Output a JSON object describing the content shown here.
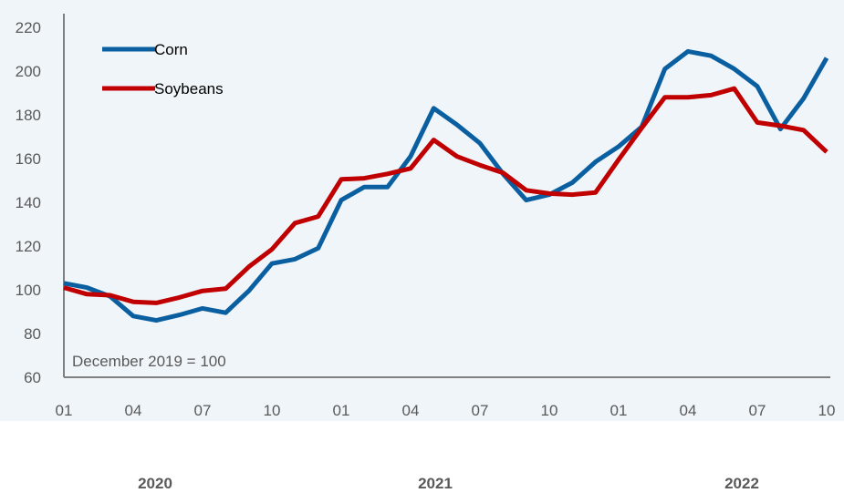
{
  "chart_data": {
    "type": "line",
    "title": "",
    "xlabel": "",
    "ylabel": "",
    "annotation": "December 2019 = 100",
    "ylim": [
      60,
      220
    ],
    "yticks": [
      60,
      80,
      100,
      120,
      140,
      160,
      180,
      200,
      220
    ],
    "x_tick_labels": [
      "01",
      "04",
      "07",
      "10",
      "01",
      "04",
      "07",
      "10",
      "01",
      "04",
      "07",
      "10"
    ],
    "year_labels": [
      "2020",
      "2021",
      "2022"
    ],
    "x": [
      "2020-01",
      "2020-02",
      "2020-03",
      "2020-04",
      "2020-05",
      "2020-06",
      "2020-07",
      "2020-08",
      "2020-09",
      "2020-10",
      "2020-11",
      "2020-12",
      "2021-01",
      "2021-02",
      "2021-03",
      "2021-04",
      "2021-05",
      "2021-06",
      "2021-07",
      "2021-08",
      "2021-09",
      "2021-10",
      "2021-11",
      "2021-12",
      "2022-01",
      "2022-02",
      "2022-03",
      "2022-04",
      "2022-05",
      "2022-06",
      "2022-07",
      "2022-08",
      "2022-09",
      "2022-10"
    ],
    "legend_position": "top-left",
    "grid": false,
    "series": [
      {
        "name": "Corn",
        "color": "#0a5fa0",
        "values": [
          103,
          101,
          97,
          88,
          86,
          88.5,
          91.5,
          89.5,
          99.5,
          112,
          114,
          119,
          141,
          147,
          147,
          161,
          183,
          175.5,
          167,
          153,
          141,
          143.5,
          149,
          158.5,
          165.5,
          174.5,
          201,
          209,
          207,
          201,
          193,
          173.5,
          187.5,
          206
        ]
      },
      {
        "name": "Soybeans",
        "color": "#c00000",
        "values": [
          101,
          98,
          97.5,
          94.5,
          94,
          96.5,
          99.5,
          100.5,
          110.5,
          118.5,
          130.5,
          133.5,
          150.5,
          151,
          153,
          155.5,
          168.5,
          161,
          157,
          153.5,
          145.5,
          144,
          143.5,
          144.5,
          159.5,
          174,
          188,
          188,
          189,
          192,
          176.5,
          175,
          173,
          163
        ]
      }
    ]
  }
}
